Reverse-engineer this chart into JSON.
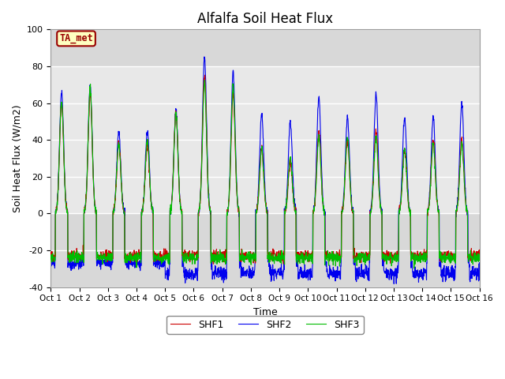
{
  "title": "Alfalfa Soil Heat Flux",
  "xlabel": "Time",
  "ylabel": "Soil Heat Flux (W/m2)",
  "ylim": [
    -40,
    100
  ],
  "xlim": [
    0,
    15
  ],
  "xtick_labels": [
    "Oct 1",
    "Oct 2",
    "Oct 3",
    "Oct 4",
    "Oct 5",
    "Oct 6",
    "Oct 7",
    "Oct 8",
    "Oct 9",
    "Oct 10",
    "Oct 11",
    "Oct 12",
    "Oct 13",
    "Oct 14",
    "Oct 15",
    "Oct 16"
  ],
  "ytick_values": [
    -40,
    -20,
    0,
    20,
    40,
    60,
    80,
    100
  ],
  "shf1_color": "#CC0000",
  "shf2_color": "#0000EE",
  "shf3_color": "#00BB00",
  "legend_labels": [
    "SHF1",
    "SHF2",
    "SHF3"
  ],
  "annotation_text": "TA_met",
  "annotation_color": "#990000",
  "annotation_bg": "#FFFFC0",
  "plot_bg_dark": "#D8D8D8",
  "plot_bg_light": "#E8E8E8",
  "linewidth": 0.8,
  "n_points": 2000,
  "title_fontsize": 12,
  "peak_h1": [
    60,
    65,
    38,
    38,
    55,
    75,
    65,
    35,
    28,
    45,
    40,
    45,
    35,
    40,
    40
  ],
  "peak_h2": [
    66,
    69,
    44,
    45,
    56,
    85,
    77,
    54,
    50,
    63,
    52,
    65,
    52,
    53,
    60
  ],
  "peak_h3": [
    61,
    68,
    38,
    40,
    54,
    71,
    69,
    35,
    30,
    42,
    42,
    42,
    35,
    38,
    38
  ],
  "night_base1": -23,
  "night_base2": -27,
  "night_base3": -24
}
